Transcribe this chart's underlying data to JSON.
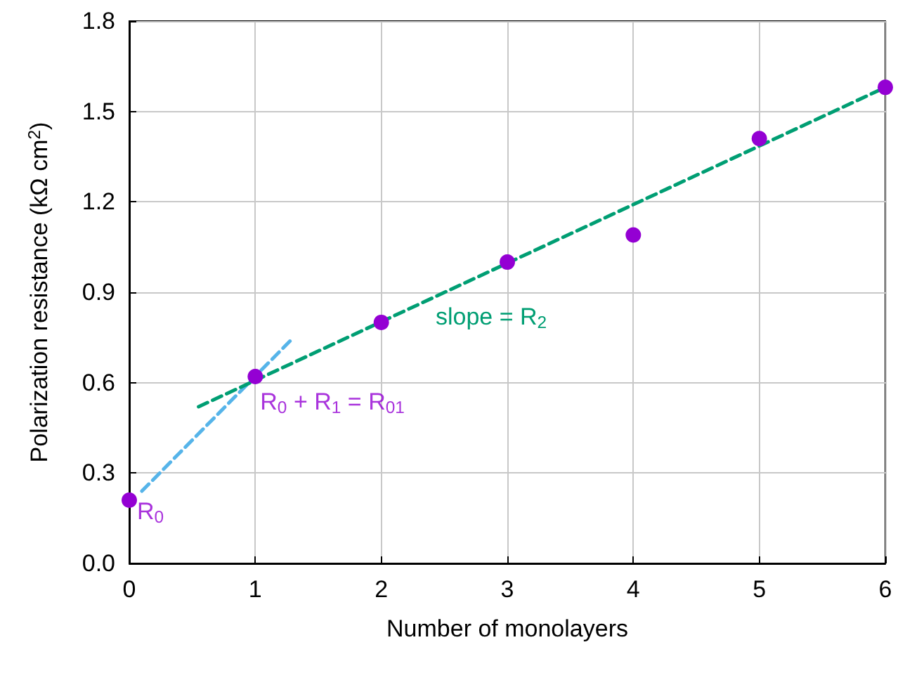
{
  "chart_data": {
    "type": "scatter",
    "xlabel": "Number of monolayers",
    "ylabel": "Polarization resistance (kΩ cm$^{2}$)",
    "xlim": [
      0,
      6
    ],
    "xticks": [
      0,
      1,
      2,
      3,
      4,
      5,
      6
    ],
    "ylim": [
      0,
      1.8
    ],
    "yticks": [
      {
        "value": 0,
        "label": "0.0"
      },
      0.3,
      0.6,
      0.9,
      1.2,
      1.5,
      1.8
    ],
    "grid": true,
    "marker": "circle",
    "series": [
      {
        "type": "line",
        "color": "#56b4e9",
        "x": [
          0.1,
          1.28
        ],
        "values": [
          0.24,
          0.74
        ],
        "line_style": "dashed",
        "marker": "none"
      },
      {
        "type": "line",
        "color": "#009e73",
        "x": [
          0.55,
          6
        ],
        "values": [
          0.52,
          1.58
        ],
        "line_style": "dashed",
        "marker": "none"
      },
      {
        "color": "#9400d3",
        "x": [
          0,
          1,
          2,
          3,
          4,
          5,
          6
        ],
        "values": [
          0.21,
          0.62,
          0.8,
          1.0,
          1.09,
          1.41,
          1.58
        ]
      }
    ],
    "annotations": [
      {
        "text": "R$_{0}$",
        "x": 0,
        "y": 0.21
      },
      {
        "text": "R$_{0}$ + R$_{1}$ = R$_{01}$",
        "x": 1,
        "y": 0.62
      },
      "slope = R$_{2}$"
    ]
  }
}
